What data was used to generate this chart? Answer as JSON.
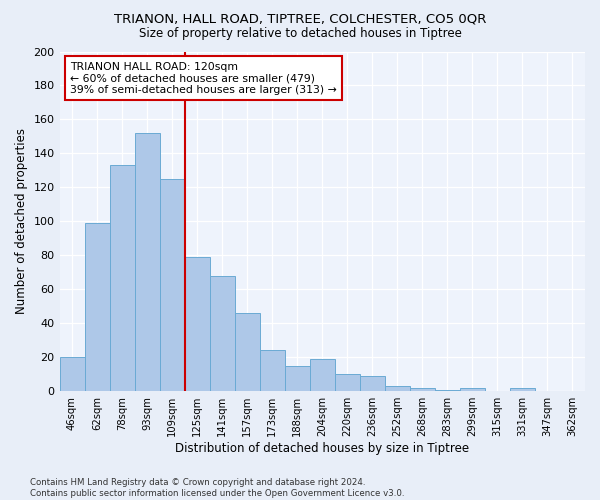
{
  "title1": "TRIANON, HALL ROAD, TIPTREE, COLCHESTER, CO5 0QR",
  "title2": "Size of property relative to detached houses in Tiptree",
  "xlabel": "Distribution of detached houses by size in Tiptree",
  "ylabel": "Number of detached properties",
  "categories": [
    "46sqm",
    "62sqm",
    "78sqm",
    "93sqm",
    "109sqm",
    "125sqm",
    "141sqm",
    "157sqm",
    "173sqm",
    "188sqm",
    "204sqm",
    "220sqm",
    "236sqm",
    "252sqm",
    "268sqm",
    "283sqm",
    "299sqm",
    "315sqm",
    "331sqm",
    "347sqm",
    "362sqm"
  ],
  "values": [
    20,
    99,
    133,
    152,
    125,
    79,
    68,
    46,
    24,
    15,
    19,
    10,
    9,
    3,
    2,
    1,
    2,
    0,
    2,
    0,
    0
  ],
  "bar_color": "#aec8e8",
  "bar_edge_color": "#6aaad4",
  "vline_x": 4.5,
  "vline_color": "#cc0000",
  "annotation_text": "TRIANON HALL ROAD: 120sqm\n← 60% of detached houses are smaller (479)\n39% of semi-detached houses are larger (313) →",
  "annotation_box_color": "white",
  "annotation_box_edge": "#cc0000",
  "ylim": [
    0,
    200
  ],
  "yticks": [
    0,
    20,
    40,
    60,
    80,
    100,
    120,
    140,
    160,
    180,
    200
  ],
  "footer": "Contains HM Land Registry data © Crown copyright and database right 2024.\nContains public sector information licensed under the Open Government Licence v3.0.",
  "bg_color": "#e8eef8",
  "plot_bg_color": "#eef3fc"
}
